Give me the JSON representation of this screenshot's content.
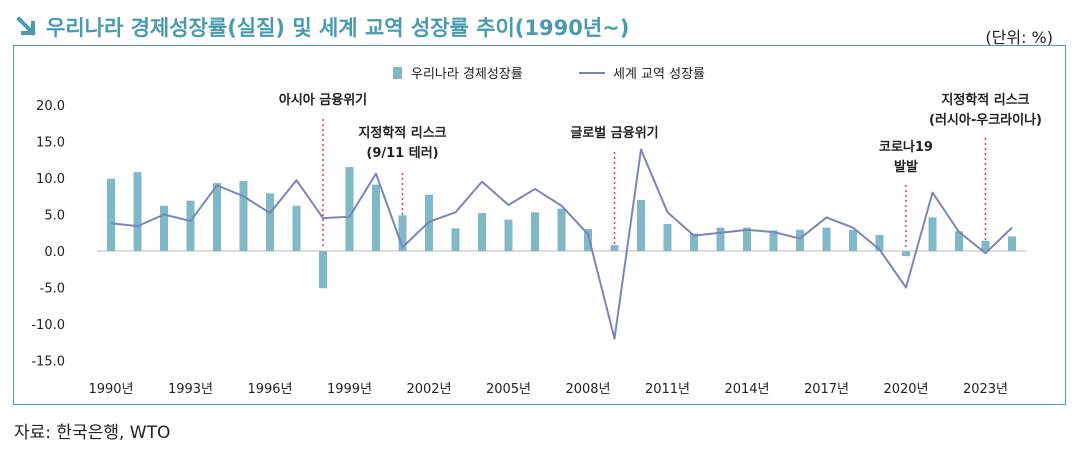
{
  "header": {
    "title": "우리나라 경제성장률(실질) 및 세계 교역 성장률 추이(1990년~)",
    "unit": "(단위: %)",
    "arrow_icon": "arrow-down-right-icon"
  },
  "source": "자료: 한국은행, WTO",
  "colors": {
    "bar": "#7fb8c7",
    "line": "#7b86b8",
    "accent": "#4a9bb2",
    "marker": "#d9413a"
  },
  "chart_data": {
    "type": "bar",
    "years": [
      1990,
      1991,
      1992,
      1993,
      1994,
      1995,
      1996,
      1997,
      1998,
      1999,
      2000,
      2001,
      2002,
      2003,
      2004,
      2005,
      2006,
      2007,
      2008,
      2009,
      2010,
      2011,
      2012,
      2013,
      2014,
      2015,
      2016,
      2017,
      2018,
      2019,
      2020,
      2021,
      2022,
      2023,
      2024
    ],
    "series": [
      {
        "name": "우리나라 경제성장률",
        "kind": "bar",
        "values": [
          9.9,
          10.8,
          6.2,
          6.9,
          9.3,
          9.6,
          7.9,
          6.2,
          -5.1,
          11.5,
          9.1,
          4.9,
          7.7,
          3.1,
          5.2,
          4.3,
          5.3,
          5.8,
          3.0,
          0.8,
          7.0,
          3.7,
          2.4,
          3.2,
          3.2,
          2.8,
          2.9,
          3.2,
          2.9,
          2.2,
          -0.7,
          4.6,
          2.7,
          1.4,
          2.0
        ]
      },
      {
        "name": "세계 교역 성장률",
        "kind": "line",
        "values": [
          3.8,
          3.4,
          5.0,
          4.1,
          9.0,
          7.5,
          5.2,
          9.7,
          4.5,
          4.7,
          10.6,
          0.5,
          4.0,
          5.3,
          9.5,
          6.3,
          8.5,
          6.2,
          2.3,
          -12.0,
          13.9,
          5.3,
          2.1,
          2.5,
          2.9,
          2.6,
          1.7,
          4.6,
          3.2,
          0.2,
          -5.0,
          8.0,
          2.6,
          -0.3,
          3.2
        ]
      }
    ],
    "x_tick_labels": [
      "1990년",
      "1993년",
      "1996년",
      "1999년",
      "2002년",
      "2005년",
      "2008년",
      "2011년",
      "2014년",
      "2017년",
      "2020년",
      "2023년"
    ],
    "y_ticks": [
      20.0,
      15.0,
      10.0,
      5.0,
      0.0,
      -5.0,
      -10.0,
      -15.0
    ],
    "y_tick_labels": [
      "20.0",
      "15.0",
      "10.0",
      "5.0",
      "0.0",
      "-5.0",
      "-10.0",
      "-15.0"
    ],
    "ylim": [
      -15,
      20
    ],
    "legend": {
      "placement": "top-center",
      "bar_label": "우리나라 경제성장률",
      "line_label": "세계 교역 성장률"
    },
    "annotations": [
      {
        "year": 1998,
        "lines": [
          "아시아 금융위기"
        ]
      },
      {
        "year": 2001,
        "lines": [
          "지정학적 리스크",
          "(9/11 테러)"
        ]
      },
      {
        "year": 2009,
        "lines": [
          "글로벌 금융위기"
        ]
      },
      {
        "year": 2020,
        "lines": [
          "코로나19",
          "발발"
        ]
      },
      {
        "year": 2023,
        "lines": [
          "지정학적 리스크",
          "(러시아-우크라이나)"
        ]
      }
    ]
  }
}
